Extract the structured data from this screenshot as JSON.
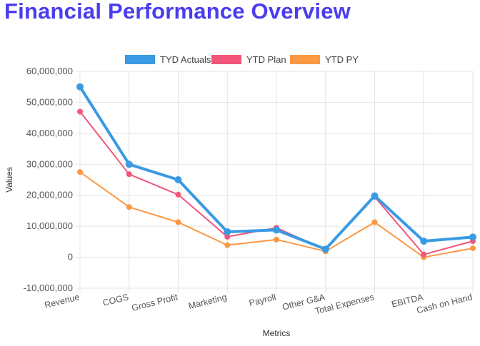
{
  "title": "Financial Performance Overview",
  "chart_data": {
    "type": "line",
    "categories": [
      "Revenue",
      "COGS",
      "Gross Profit",
      "Marketing",
      "Payroll",
      "Other G&A",
      "Total Expenses",
      "EBITDA",
      "Cash on Hand"
    ],
    "series": [
      {
        "name": "TYD Actuals",
        "color": "#3a9ae3",
        "values": [
          55000000,
          30000000,
          25000000,
          8200000,
          8800000,
          2600000,
          19800000,
          5200000,
          6500000
        ]
      },
      {
        "name": "YTD Plan",
        "color": "#f2557a",
        "values": [
          47000000,
          26800000,
          20200000,
          6600000,
          9500000,
          2400000,
          19500000,
          900000,
          5200000
        ]
      },
      {
        "name": "YTD PY",
        "color": "#fb9844",
        "values": [
          27500000,
          16200000,
          11300000,
          3900000,
          5700000,
          1900000,
          11300000,
          0,
          2900000
        ]
      }
    ],
    "xlabel": "Metrics",
    "ylabel": "Values",
    "ylim": [
      -10000000,
      60000000
    ],
    "yticks": [
      "-10,000,000",
      "0",
      "10,000,000",
      "20,000,000",
      "30,000,000",
      "40,000,000",
      "50,000,000",
      "60,000,000"
    ],
    "grid": true,
    "legend": "top-center"
  }
}
